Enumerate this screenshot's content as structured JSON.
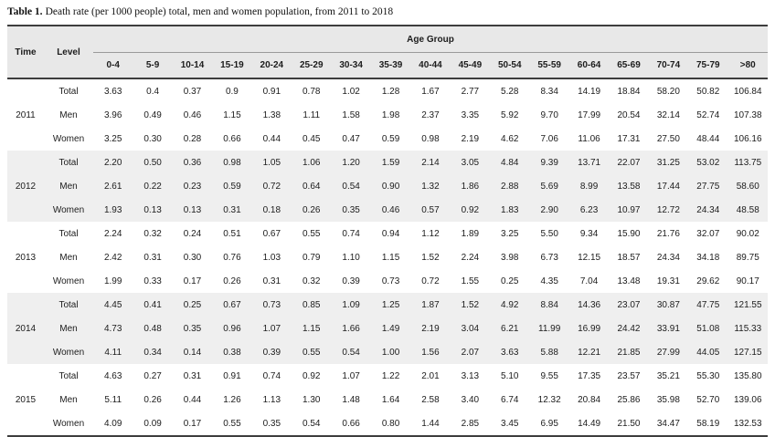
{
  "caption": {
    "label": "Table 1.",
    "text": "Death rate (per 1000 people) total, men and women population, from 2011 to 2018"
  },
  "table": {
    "headers": {
      "time": "Time",
      "level": "Level",
      "age_group": "Age Group"
    },
    "age_groups": [
      "0-4",
      "5-9",
      "10-14",
      "15-19",
      "20-24",
      "25-29",
      "30-34",
      "35-39",
      "40-44",
      "45-49",
      "50-54",
      "55-59",
      "60-64",
      "65-69",
      "70-74",
      "75-79",
      ">80"
    ],
    "groups": [
      {
        "year": "2011",
        "shaded": false,
        "rows": [
          {
            "level": "Total",
            "values": [
              "3.63",
              "0.4",
              "0.37",
              "0.9",
              "0.91",
              "0.78",
              "1.02",
              "1.28",
              "1.67",
              "2.77",
              "5.28",
              "8.34",
              "14.19",
              "18.84",
              "58.20",
              "50.82",
              "106.84"
            ]
          },
          {
            "level": "Men",
            "values": [
              "3.96",
              "0.49",
              "0.46",
              "1.15",
              "1.38",
              "1.11",
              "1.58",
              "1.98",
              "2.37",
              "3.35",
              "5.92",
              "9.70",
              "17.99",
              "20.54",
              "32.14",
              "52.74",
              "107.38"
            ]
          },
          {
            "level": "Women",
            "values": [
              "3.25",
              "0.30",
              "0.28",
              "0.66",
              "0.44",
              "0.45",
              "0.47",
              "0.59",
              "0.98",
              "2.19",
              "4.62",
              "7.06",
              "11.06",
              "17.31",
              "27.50",
              "48.44",
              "106.16"
            ]
          }
        ]
      },
      {
        "year": "2012",
        "shaded": true,
        "rows": [
          {
            "level": "Total",
            "values": [
              "2.20",
              "0.50",
              "0.36",
              "0.98",
              "1.05",
              "1.06",
              "1.20",
              "1.59",
              "2.14",
              "3.05",
              "4.84",
              "9.39",
              "13.71",
              "22.07",
              "31.25",
              "53.02",
              "113.75"
            ]
          },
          {
            "level": "Men",
            "values": [
              "2.61",
              "0.22",
              "0.23",
              "0.59",
              "0.72",
              "0.64",
              "0.54",
              "0.90",
              "1.32",
              "1.86",
              "2.88",
              "5.69",
              "8.99",
              "13.58",
              "17.44",
              "27.75",
              "58.60"
            ]
          },
          {
            "level": "Women",
            "values": [
              "1.93",
              "0.13",
              "0.13",
              "0.31",
              "0.18",
              "0.26",
              "0.35",
              "0.46",
              "0.57",
              "0.92",
              "1.83",
              "2.90",
              "6.23",
              "10.97",
              "12.72",
              "24.34",
              "48.58"
            ]
          }
        ]
      },
      {
        "year": "2013",
        "shaded": false,
        "rows": [
          {
            "level": "Total",
            "values": [
              "2.24",
              "0.32",
              "0.24",
              "0.51",
              "0.67",
              "0.55",
              "0.74",
              "0.94",
              "1.12",
              "1.89",
              "3.25",
              "5.50",
              "9.34",
              "15.90",
              "21.76",
              "32.07",
              "90.02"
            ]
          },
          {
            "level": "Men",
            "values": [
              "2.42",
              "0.31",
              "0.30",
              "0.76",
              "1.03",
              "0.79",
              "1.10",
              "1.15",
              "1.52",
              "2.24",
              "3.98",
              "6.73",
              "12.15",
              "18.57",
              "24.34",
              "34.18",
              "89.75"
            ]
          },
          {
            "level": "Women",
            "values": [
              "1.99",
              "0.33",
              "0.17",
              "0.26",
              "0.31",
              "0.32",
              "0.39",
              "0.73",
              "0.72",
              "1.55",
              "0.25",
              "4.35",
              "7.04",
              "13.48",
              "19.31",
              "29.62",
              "90.17"
            ]
          }
        ]
      },
      {
        "year": "2014",
        "shaded": true,
        "rows": [
          {
            "level": "Total",
            "values": [
              "4.45",
              "0.41",
              "0.25",
              "0.67",
              "0.73",
              "0.85",
              "1.09",
              "1.25",
              "1.87",
              "1.52",
              "4.92",
              "8.84",
              "14.36",
              "23.07",
              "30.87",
              "47.75",
              "121.55"
            ]
          },
          {
            "level": "Men",
            "values": [
              "4.73",
              "0.48",
              "0.35",
              "0.96",
              "1.07",
              "1.15",
              "1.66",
              "1.49",
              "2.19",
              "3.04",
              "6.21",
              "11.99",
              "16.99",
              "24.42",
              "33.91",
              "51.08",
              "115.33"
            ]
          },
          {
            "level": "Women",
            "values": [
              "4.11",
              "0.34",
              "0.14",
              "0.38",
              "0.39",
              "0.55",
              "0.54",
              "1.00",
              "1.56",
              "2.07",
              "3.63",
              "5.88",
              "12.21",
              "21.85",
              "27.99",
              "44.05",
              "127.15"
            ]
          }
        ]
      },
      {
        "year": "2015",
        "shaded": false,
        "rows": [
          {
            "level": "Total",
            "values": [
              "4.63",
              "0.27",
              "0.31",
              "0.91",
              "0.74",
              "0.92",
              "1.07",
              "1.22",
              "2.01",
              "3.13",
              "5.10",
              "9.55",
              "17.35",
              "23.57",
              "35.21",
              "55.30",
              "135.80"
            ]
          },
          {
            "level": "Men",
            "values": [
              "5.11",
              "0.26",
              "0.44",
              "1.26",
              "1.13",
              "1.30",
              "1.48",
              "1.64",
              "2.58",
              "3.40",
              "6.74",
              "12.32",
              "20.84",
              "25.86",
              "35.98",
              "52.70",
              "139.06"
            ]
          },
          {
            "level": "Women",
            "values": [
              "4.09",
              "0.09",
              "0.17",
              "0.55",
              "0.35",
              "0.54",
              "0.66",
              "0.80",
              "1.44",
              "2.85",
              "3.45",
              "6.95",
              "14.49",
              "21.50",
              "34.47",
              "58.19",
              "132.53"
            ]
          }
        ]
      }
    ]
  }
}
